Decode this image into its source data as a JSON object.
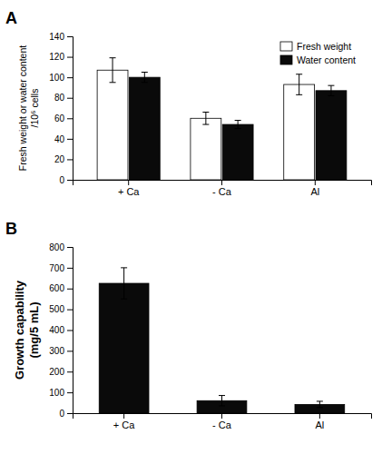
{
  "chart_data": [
    {
      "type": "bar",
      "title": "A",
      "categories": [
        "+ Ca",
        "- Ca",
        "Al"
      ],
      "series": [
        {
          "name": "Fresh weight",
          "color": "#ffffff",
          "values": [
            107,
            60,
            93
          ],
          "errors": [
            12,
            6,
            10
          ]
        },
        {
          "name": "Water content",
          "color": "#0a0a0a",
          "values": [
            100,
            54,
            87
          ],
          "errors": [
            5,
            4,
            5
          ]
        }
      ],
      "ylabel": "Fresh weight or water content\n/10⁶ cells",
      "ylim": [
        0,
        140
      ],
      "yticks": [
        0,
        20,
        40,
        60,
        80,
        100,
        120,
        140
      ],
      "legend": "upper right"
    },
    {
      "type": "bar",
      "title": "B",
      "categories": [
        "+ Ca",
        "- Ca",
        "Al"
      ],
      "values": [
        625,
        60,
        42
      ],
      "errors": [
        75,
        25,
        15
      ],
      "color": "#0a0a0a",
      "ylabel": "Growth capability\n(mg/5 mL)",
      "ylim": [
        0,
        800
      ],
      "yticks": [
        0,
        100,
        200,
        300,
        400,
        500,
        600,
        700,
        800
      ]
    }
  ]
}
